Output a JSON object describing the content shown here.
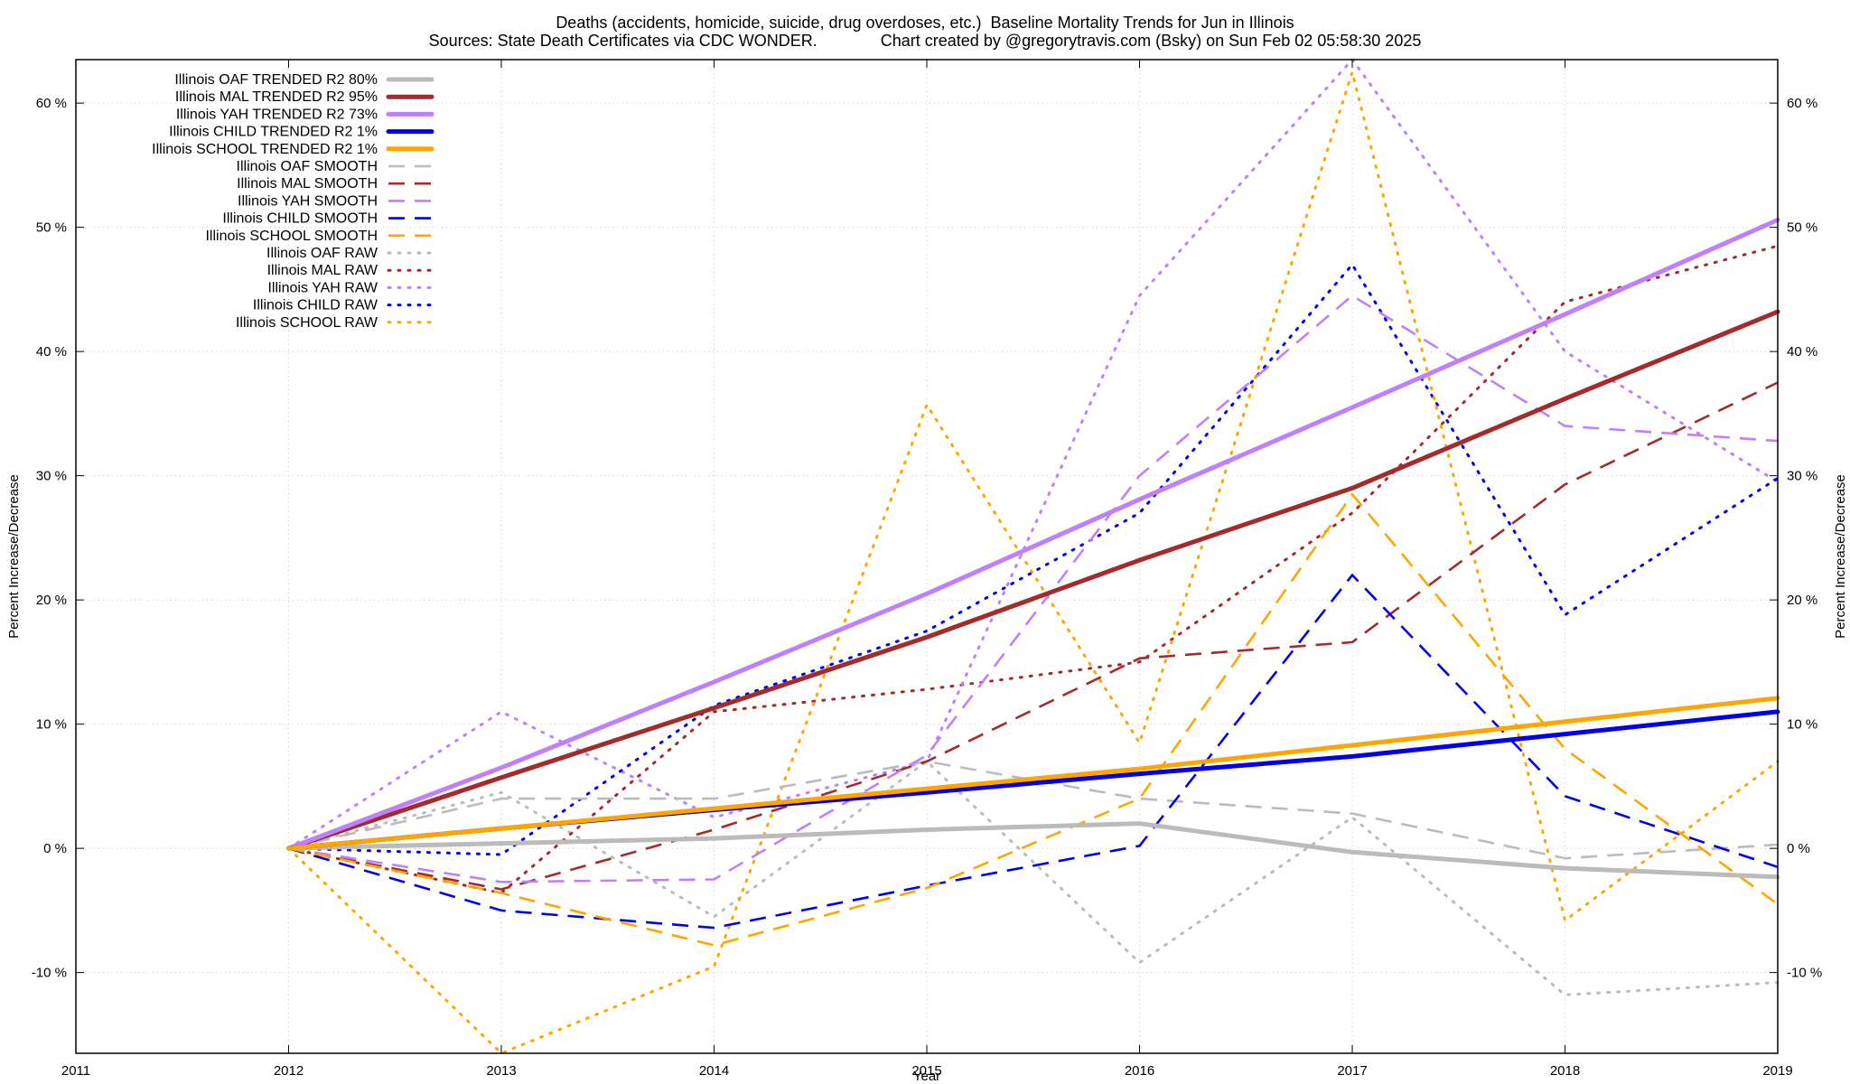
{
  "title_line1": "Deaths (accidents, homicide, suicide, drug overdoses, etc.)  Baseline Mortality Trends for Jun in Illinois",
  "title_line2": "Sources: State Death Certificates via CDC WONDER.              Chart created by @gregorytravis.com (Bsky) on Sun Feb 02 05:58:30 2025",
  "chart_data": {
    "type": "line",
    "title": "Deaths (accidents, homicide, suicide, drug overdoses, etc.)  Baseline Mortality Trends for Jun in Illinois",
    "subtitle": "Sources: State Death Certificates via CDC WONDER.              Chart created by @gregorytravis.com (Bsky) on Sun Feb 02 05:58:30 2025",
    "xlabel": "Year",
    "ylabel": "Percent Increase/Decrease",
    "y2label": "Percent Increase/Decrease",
    "xlim": [
      2011,
      2019
    ],
    "ylim": [
      -16.5,
      63.5
    ],
    "x_ticks": [
      "2011",
      "2012",
      "2013",
      "2014",
      "2015",
      "2016",
      "2017",
      "2018",
      "2019"
    ],
    "y_ticks": [
      "-10 %",
      "0 %",
      "10 %",
      "20 %",
      "30 %",
      "40 %",
      "50 %",
      "60 %"
    ],
    "y_tick_values": [
      -10,
      0,
      10,
      20,
      30,
      40,
      50,
      60
    ],
    "grid": true,
    "legend_position": "top-left",
    "series": [
      {
        "name": "Illinois OAF TRENDED R2  80%",
        "color": "#bbbbbb",
        "style": "solid",
        "x": [
          2012,
          2013,
          2014,
          2015,
          2016,
          2017,
          2018,
          2019
        ],
        "values": [
          0,
          0.4,
          0.8,
          1.5,
          2.0,
          -0.3,
          -1.6,
          -2.3
        ]
      },
      {
        "name": "Illinois MAL TRENDED R2  95%",
        "color": "#a52a2a",
        "style": "solid",
        "x": [
          2012,
          2013,
          2014,
          2015,
          2016,
          2017,
          2018,
          2019
        ],
        "values": [
          0,
          5.7,
          11.3,
          17.0,
          23.2,
          29.0,
          36.2,
          43.2
        ]
      },
      {
        "name": "Illinois YAH TRENDED R2  73%",
        "color": "#bf7fff",
        "style": "solid",
        "x": [
          2012,
          2013,
          2014,
          2015,
          2016,
          2017,
          2018,
          2019
        ],
        "values": [
          0,
          6.5,
          13.4,
          20.5,
          28.1,
          35.5,
          43.0,
          50.6
        ]
      },
      {
        "name": "Illinois CHILD TRENDED R2   1%",
        "color": "#0000ee",
        "style": "solid",
        "x": [
          2012,
          2013,
          2014,
          2015,
          2016,
          2017,
          2018,
          2019
        ],
        "values": [
          0,
          1.6,
          3.1,
          4.5,
          6.0,
          7.4,
          9.2,
          11.0
        ]
      },
      {
        "name": "Illinois SCHOOL TRENDED R2   1%",
        "color": "#ffa500",
        "style": "solid",
        "x": [
          2012,
          2013,
          2014,
          2015,
          2016,
          2017,
          2018,
          2019
        ],
        "values": [
          0,
          1.6,
          3.2,
          4.8,
          6.4,
          8.3,
          10.2,
          12.1
        ]
      },
      {
        "name": "Illinois OAF SMOOTH",
        "color": "#bbbbbb",
        "style": "dashed",
        "x": [
          2012,
          2013,
          2014,
          2015,
          2016,
          2017,
          2018,
          2019
        ],
        "values": [
          0,
          4.0,
          4.0,
          7.0,
          4.0,
          2.8,
          -0.8,
          0.3
        ]
      },
      {
        "name": "Illinois MAL SMOOTH",
        "color": "#a52a2a",
        "style": "dashed",
        "x": [
          2012,
          2013,
          2014,
          2015,
          2016,
          2017,
          2018,
          2019
        ],
        "values": [
          0,
          -3.3,
          1.5,
          7.0,
          15.3,
          16.6,
          29.3,
          37.5
        ]
      },
      {
        "name": "Illinois YAH SMOOTH",
        "color": "#bf7fff",
        "style": "dashed",
        "x": [
          2012,
          2013,
          2014,
          2015,
          2016,
          2017,
          2018,
          2019
        ],
        "values": [
          0,
          -2.7,
          -2.5,
          7.5,
          30.0,
          44.5,
          34.0,
          32.8
        ]
      },
      {
        "name": "Illinois CHILD SMOOTH",
        "color": "#0000ee",
        "style": "dashed",
        "x": [
          2012,
          2013,
          2014,
          2015,
          2016,
          2017,
          2018,
          2019
        ],
        "values": [
          0,
          -5.0,
          -6.4,
          -3.0,
          0.2,
          22.0,
          4.2,
          -1.5
        ]
      },
      {
        "name": "Illinois SCHOOL SMOOTH",
        "color": "#ffa500",
        "style": "dashed",
        "x": [
          2012,
          2013,
          2014,
          2015,
          2016,
          2017,
          2018,
          2019
        ],
        "values": [
          0,
          -3.6,
          -7.8,
          -3.2,
          4.0,
          28.5,
          8.0,
          -4.5
        ]
      },
      {
        "name": "Illinois OAF RAW",
        "color": "#bbbbbb",
        "style": "dotted",
        "x": [
          2012,
          2013,
          2014,
          2015,
          2016,
          2017,
          2018,
          2019
        ],
        "values": [
          0,
          4.5,
          -5.5,
          7.0,
          -9.2,
          2.5,
          -11.8,
          -10.8
        ]
      },
      {
        "name": "Illinois MAL RAW",
        "color": "#a52a2a",
        "style": "dotted",
        "x": [
          2012,
          2013,
          2014,
          2015,
          2016,
          2017,
          2018,
          2019
        ],
        "values": [
          0,
          -3.6,
          11.0,
          12.8,
          15.0,
          27.0,
          44.0,
          48.5
        ]
      },
      {
        "name": "Illinois YAH RAW",
        "color": "#bf7fff",
        "style": "dotted",
        "x": [
          2012,
          2013,
          2014,
          2015,
          2016,
          2017,
          2018,
          2019
        ],
        "values": [
          0,
          11.0,
          2.5,
          7.0,
          44.5,
          63.5,
          40.0,
          29.5
        ]
      },
      {
        "name": "Illinois CHILD RAW",
        "color": "#0000ee",
        "style": "dotted",
        "x": [
          2012,
          2013,
          2014,
          2015,
          2016,
          2017,
          2018,
          2019
        ],
        "values": [
          0,
          -0.5,
          11.5,
          17.5,
          27.0,
          47.0,
          18.8,
          29.8
        ]
      },
      {
        "name": "Illinois SCHOOL RAW",
        "color": "#ffa500",
        "style": "dotted",
        "x": [
          2012,
          2013,
          2014,
          2015,
          2016,
          2017,
          2018,
          2019
        ],
        "values": [
          0,
          -16.5,
          -9.5,
          35.7,
          8.5,
          62.5,
          -5.8,
          7.0
        ]
      }
    ]
  }
}
